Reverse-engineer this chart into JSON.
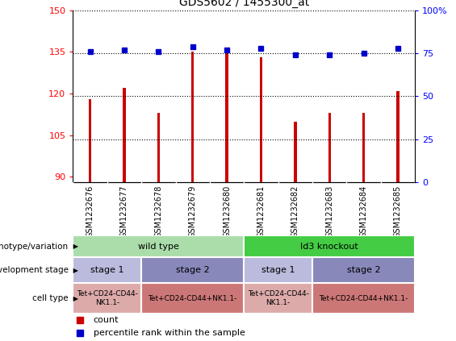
{
  "title": "GDS5602 / 1455300_at",
  "samples": [
    "GSM1232676",
    "GSM1232677",
    "GSM1232678",
    "GSM1232679",
    "GSM1232680",
    "GSM1232681",
    "GSM1232682",
    "GSM1232683",
    "GSM1232684",
    "GSM1232685"
  ],
  "counts": [
    118,
    122,
    113,
    135,
    135,
    133,
    110,
    113,
    113,
    121
  ],
  "percentiles": [
    76,
    77,
    76,
    79,
    77,
    78,
    74,
    74,
    75,
    78
  ],
  "ylim_left": [
    88,
    150
  ],
  "ylim_right": [
    0,
    100
  ],
  "yticks_left": [
    90,
    105,
    120,
    135,
    150
  ],
  "yticks_right": [
    0,
    25,
    50,
    75,
    100
  ],
  "bar_color": "#cc0000",
  "dot_color": "#0000cc",
  "bar_width": 0.08,
  "genotype_groups": [
    {
      "label": "wild type",
      "start": 0,
      "end": 5,
      "color": "#aaddaa"
    },
    {
      "label": "Id3 knockout",
      "start": 5,
      "end": 10,
      "color": "#44cc44"
    }
  ],
  "dev_stage_groups": [
    {
      "label": "stage 1",
      "start": 0,
      "end": 2,
      "color": "#bbbbdd"
    },
    {
      "label": "stage 2",
      "start": 2,
      "end": 5,
      "color": "#8888bb"
    },
    {
      "label": "stage 1",
      "start": 5,
      "end": 7,
      "color": "#bbbbdd"
    },
    {
      "label": "stage 2",
      "start": 7,
      "end": 10,
      "color": "#8888bb"
    }
  ],
  "cell_type_groups": [
    {
      "label": "Tet+CD24-CD44-\nNK1.1-",
      "start": 0,
      "end": 2,
      "color": "#ddaaaa"
    },
    {
      "label": "Tet+CD24-CD44+NK1.1-",
      "start": 2,
      "end": 5,
      "color": "#cc7777"
    },
    {
      "label": "Tet+CD24-CD44-\nNK1.1-",
      "start": 5,
      "end": 7,
      "color": "#ddaaaa"
    },
    {
      "label": "Tet+CD24-CD44+NK1.1-",
      "start": 7,
      "end": 10,
      "color": "#cc7777"
    }
  ],
  "row_labels": [
    "genotype/variation",
    "development stage",
    "cell type"
  ],
  "legend_items": [
    {
      "label": "count",
      "color": "#cc0000"
    },
    {
      "label": "percentile rank within the sample",
      "color": "#0000cc"
    }
  ],
  "tick_label_bg": "#cccccc"
}
